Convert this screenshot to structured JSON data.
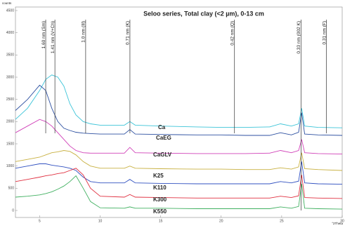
{
  "chart_data": {
    "type": "line",
    "title": "Seloo series, Total clay (<2 µm), 0-13 cm",
    "y_label": "counts",
    "x_label": "°2Theta",
    "xlim": [
      3,
      30
    ],
    "xticks": [
      5,
      10,
      15,
      20,
      25,
      30
    ],
    "ylim": [
      0,
      4500
    ],
    "yticks": [
      0,
      500,
      1000,
      1500,
      2000,
      2500,
      3000,
      3500,
      4000,
      4500
    ],
    "x": [
      3,
      4,
      5,
      5.5,
      6,
      6.5,
      7,
      7.5,
      8,
      8.6,
      9.2,
      10,
      12,
      12.45,
      12.9,
      15,
      18,
      20,
      22,
      24,
      24.9,
      25.8,
      26.4,
      26.65,
      26.9,
      28,
      30
    ],
    "series": [
      {
        "name": "Ca",
        "color": "#3cc4d8",
        "values": [
          2050,
          2300,
          2700,
          2950,
          3050,
          3000,
          2800,
          2400,
          2150,
          2000,
          1950,
          1920,
          1920,
          2000,
          1920,
          1900,
          1880,
          1870,
          1870,
          1880,
          1950,
          1900,
          1950,
          2300,
          1900,
          1870,
          1860
        ]
      },
      {
        "name": "CaEG",
        "color": "#2c4fa0",
        "values": [
          2250,
          2500,
          2820,
          2700,
          2300,
          2000,
          1850,
          1800,
          1760,
          1740,
          1730,
          1720,
          1720,
          1820,
          1720,
          1710,
          1700,
          1700,
          1690,
          1690,
          1750,
          1700,
          1760,
          2200,
          1720,
          1700,
          1690
        ]
      },
      {
        "name": "CaGLV",
        "color": "#d040b8",
        "values": [
          1750,
          1900,
          2050,
          2000,
          1900,
          1750,
          1600,
          1450,
          1350,
          1300,
          1290,
          1290,
          1290,
          1420,
          1300,
          1290,
          1280,
          1280,
          1280,
          1290,
          1350,
          1300,
          1350,
          1600,
          1300,
          1280,
          1270
        ]
      },
      {
        "name": "K25",
        "color": "#c8b040",
        "values": [
          1100,
          1150,
          1200,
          1250,
          1300,
          1320,
          1350,
          1330,
          1250,
          1100,
          1000,
          950,
          950,
          1000,
          950,
          940,
          930,
          930,
          920,
          920,
          960,
          930,
          980,
          1300,
          940,
          920,
          900
        ]
      },
      {
        "name": "K110",
        "color": "#3050c0",
        "values": [
          950,
          1000,
          1050,
          1050,
          1020,
          1000,
          980,
          950,
          900,
          750,
          650,
          620,
          620,
          700,
          620,
          610,
          600,
          600,
          600,
          600,
          650,
          620,
          660,
          1100,
          620,
          600,
          590
        ]
      },
      {
        "name": "K300",
        "color": "#e03040",
        "values": [
          650,
          700,
          750,
          780,
          800,
          830,
          850,
          900,
          950,
          800,
          500,
          320,
          300,
          360,
          300,
          290,
          280,
          280,
          280,
          280,
          320,
          290,
          330,
          800,
          290,
          280,
          270
        ]
      },
      {
        "name": "K550",
        "color": "#40b060",
        "values": [
          300,
          320,
          350,
          380,
          420,
          480,
          550,
          650,
          780,
          500,
          200,
          60,
          50,
          80,
          50,
          50,
          40,
          40,
          40,
          40,
          80,
          50,
          90,
          600,
          50,
          40,
          30
        ]
      }
    ],
    "reference_lines": [
      {
        "x": 5.5,
        "label": "1.60 nm (Sm)"
      },
      {
        "x": 6.26,
        "label": "1.41 nm (V+Ch)"
      },
      {
        "x": 8.8,
        "label": "1.0 nm (Ill)"
      },
      {
        "x": 12.46,
        "label": "0.71 nm (K)"
      },
      {
        "x": 21.1,
        "label": "0.42 nm (Q)"
      },
      {
        "x": 26.6,
        "label": "0.33 nm (002 K)"
      },
      {
        "x": 28.7,
        "label": "0.31 nm (F)"
      }
    ]
  }
}
